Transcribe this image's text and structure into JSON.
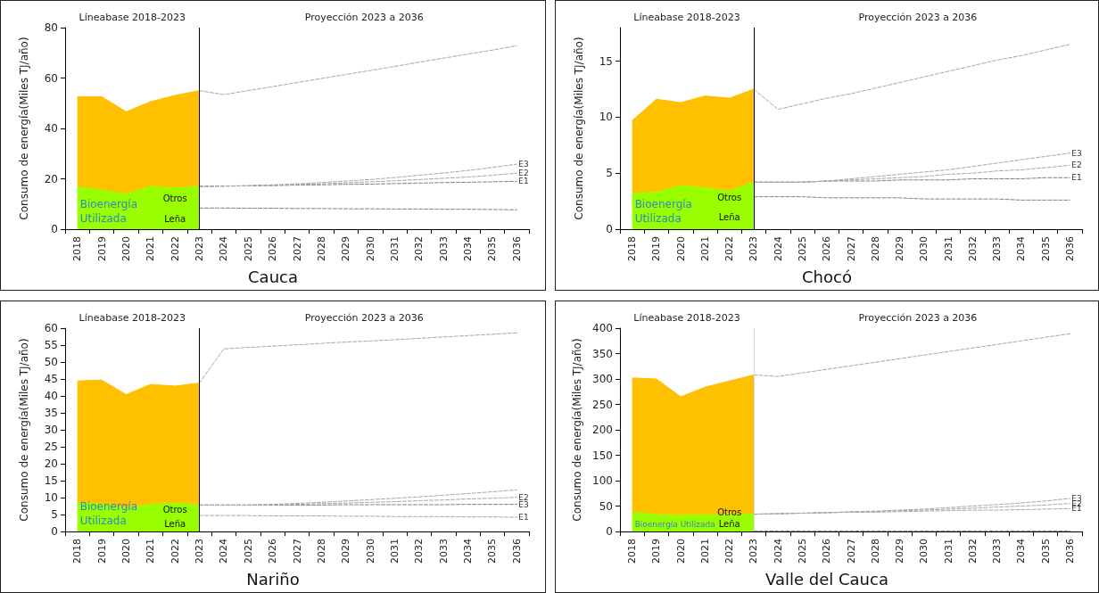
{
  "chart_data": [
    {
      "type": "area",
      "title": "Cauca",
      "ylabel": "Consumo de energía(Miles TJ/año)",
      "stacked": true,
      "marker": "none",
      "ylim": [
        0,
        80
      ],
      "yticks": [
        0,
        20,
        40,
        60,
        80
      ],
      "categories": [
        "2018",
        "2019",
        "2020",
        "2021",
        "2022",
        "2023",
        "2024",
        "2025",
        "2026",
        "2027",
        "2028",
        "2029",
        "2030",
        "2031",
        "2032",
        "2033",
        "2034",
        "2035",
        "2036"
      ],
      "series": [
        {
          "name": "Leña",
          "type": "area",
          "color": "#99ff00",
          "values": [
            7.3,
            7.3,
            6.3,
            8.0,
            8.0,
            8.4,
            null,
            null,
            null,
            null,
            null,
            null,
            null,
            null,
            null,
            null,
            null,
            null,
            null
          ]
        },
        {
          "name": "Otros",
          "type": "area",
          "color": "#99ff00",
          "values": [
            9.5,
            8.3,
            7.7,
            9.0,
            8.4,
            8.6,
            null,
            null,
            null,
            null,
            null,
            null,
            null,
            null,
            null,
            null,
            null,
            null,
            null
          ]
        },
        {
          "type": "area",
          "color": "#ffc000",
          "values": [
            35.8,
            37.0,
            32.6,
            33.6,
            36.7,
            38.0,
            null,
            null,
            null,
            null,
            null,
            null,
            null,
            null,
            null,
            null,
            null,
            null,
            null
          ]
        },
        {
          "type": "line",
          "line_style": "dashed",
          "color": "#a6a6a6",
          "values": [
            null,
            null,
            null,
            null,
            null,
            55.0,
            53.4,
            55.0,
            56.6,
            58.2,
            59.8,
            61.4,
            63.0,
            64.6,
            66.3,
            67.9,
            69.5,
            71.1,
            72.8
          ]
        },
        {
          "type": "line",
          "line_style": "dashed",
          "color": "#7f7f7f",
          "values": [
            null,
            null,
            null,
            null,
            null,
            8.4,
            8.4,
            8.3,
            8.3,
            8.2,
            8.2,
            8.1,
            8.1,
            8.0,
            8.0,
            7.9,
            7.9,
            7.8,
            7.7
          ]
        },
        {
          "name": "E1",
          "type": "line",
          "line_style": "dashed",
          "color": "#7f7f7f",
          "values": [
            null,
            null,
            null,
            null,
            null,
            17.0,
            17.1,
            17.2,
            17.3,
            17.5,
            17.6,
            17.8,
            17.9,
            18.1,
            18.3,
            18.5,
            18.6,
            18.8,
            19.0
          ]
        },
        {
          "name": "E2",
          "type": "line",
          "line_style": "dashed",
          "color": "#a6a6a6",
          "values": [
            null,
            null,
            null,
            null,
            null,
            17.0,
            17.1,
            17.2,
            17.4,
            17.7,
            18.0,
            18.4,
            18.8,
            19.2,
            19.7,
            20.2,
            20.7,
            21.4,
            22.2
          ]
        },
        {
          "name": "E3",
          "type": "line",
          "line_style": "dashed",
          "color": "#a6a6a6",
          "values": [
            null,
            null,
            null,
            null,
            null,
            17.0,
            17.1,
            17.3,
            17.6,
            18.0,
            18.5,
            19.1,
            19.7,
            20.5,
            21.4,
            22.3,
            23.3,
            24.5,
            25.8
          ]
        }
      ],
      "ref_lines": [
        {
          "axis": "x",
          "value": "2023",
          "color": "#000000"
        }
      ],
      "annotations": [
        "Líneabase 2018-2023",
        "Proyección 2023 a 2036",
        "Bioenergía\nUtilizada"
      ]
    },
    {
      "type": "area",
      "title": "Chocó",
      "ylabel": "Consumo de energía(Miles TJ/año)",
      "stacked": true,
      "marker": "none",
      "ylim": [
        0,
        18
      ],
      "yticks": [
        0,
        5,
        10,
        15
      ],
      "categories": [
        "2018",
        "2019",
        "2020",
        "2021",
        "2022",
        "2023",
        "2024",
        "2025",
        "2026",
        "2027",
        "2028",
        "2029",
        "2030",
        "2031",
        "2032",
        "2033",
        "2034",
        "2035",
        "2036"
      ],
      "series": [
        {
          "name": "Leña",
          "type": "area",
          "color": "#99ff00",
          "values": [
            2.6,
            2.6,
            2.8,
            2.5,
            2.2,
            2.9,
            null,
            null,
            null,
            null,
            null,
            null,
            null,
            null,
            null,
            null,
            null,
            null,
            null
          ]
        },
        {
          "name": "Otros",
          "type": "area",
          "color": "#99ff00",
          "values": [
            0.6,
            0.7,
            1.1,
            1.2,
            1.2,
            1.3,
            null,
            null,
            null,
            null,
            null,
            null,
            null,
            null,
            null,
            null,
            null,
            null,
            null
          ]
        },
        {
          "type": "area",
          "color": "#ffc000",
          "values": [
            6.5,
            8.3,
            7.4,
            8.2,
            8.3,
            8.3,
            null,
            null,
            null,
            null,
            null,
            null,
            null,
            null,
            null,
            null,
            null,
            null,
            null
          ]
        },
        {
          "type": "line",
          "line_style": "dashed",
          "color": "#a6a6a6",
          "values": [
            null,
            null,
            null,
            null,
            null,
            12.5,
            10.7,
            11.2,
            11.7,
            12.1,
            12.6,
            13.1,
            13.6,
            14.1,
            14.6,
            15.1,
            15.5,
            16.0,
            16.5
          ]
        },
        {
          "type": "line",
          "line_style": "dashed",
          "color": "#7f7f7f",
          "values": [
            null,
            null,
            null,
            null,
            null,
            2.9,
            2.9,
            2.9,
            2.8,
            2.8,
            2.8,
            2.8,
            2.7,
            2.7,
            2.7,
            2.7,
            2.6,
            2.6,
            2.6
          ]
        },
        {
          "name": "E1",
          "type": "line",
          "line_style": "dashed",
          "color": "#7f7f7f",
          "values": [
            null,
            null,
            null,
            null,
            null,
            4.2,
            4.2,
            4.2,
            4.3,
            4.3,
            4.3,
            4.4,
            4.4,
            4.4,
            4.5,
            4.5,
            4.5,
            4.6,
            4.6
          ]
        },
        {
          "name": "E2",
          "type": "line",
          "line_style": "dashed",
          "color": "#a6a6a6",
          "values": [
            null,
            null,
            null,
            null,
            null,
            4.2,
            4.2,
            4.2,
            4.3,
            4.4,
            4.5,
            4.6,
            4.7,
            4.9,
            5.0,
            5.2,
            5.3,
            5.5,
            5.7
          ]
        },
        {
          "name": "E3",
          "type": "line",
          "line_style": "dashed",
          "color": "#a6a6a6",
          "values": [
            null,
            null,
            null,
            null,
            null,
            4.2,
            4.2,
            4.2,
            4.3,
            4.5,
            4.7,
            4.9,
            5.1,
            5.3,
            5.6,
            5.9,
            6.2,
            6.5,
            6.8
          ]
        }
      ],
      "ref_lines": [
        {
          "axis": "x",
          "value": "2023",
          "color": "#000000"
        }
      ],
      "annotations": [
        "Líneabase 2018-2023",
        "Proyección 2023 a 2036",
        "Bioenergía\nUtilizada"
      ]
    },
    {
      "type": "area",
      "title": "Nariño",
      "ylabel": "Consumo de energía(Miles TJ/año)",
      "stacked": true,
      "marker": "none",
      "ylim": [
        0,
        60
      ],
      "yticks": [
        0,
        5,
        10,
        15,
        20,
        25,
        30,
        35,
        40,
        45,
        50,
        55,
        60
      ],
      "categories": [
        "2018",
        "2019",
        "2020",
        "2021",
        "2022",
        "2023",
        "2024",
        "2025",
        "2026",
        "2027",
        "2028",
        "2029",
        "2030",
        "2031",
        "2032",
        "2033",
        "2034",
        "2035",
        "2036"
      ],
      "series": [
        {
          "name": "Leña",
          "type": "area",
          "color": "#99ff00",
          "values": [
            4.4,
            4.4,
            3.3,
            4.1,
            4.7,
            4.7,
            null,
            null,
            null,
            null,
            null,
            null,
            null,
            null,
            null,
            null,
            null,
            null,
            null
          ]
        },
        {
          "name": "Otros",
          "type": "area",
          "color": "#99ff00",
          "values": [
            4.0,
            3.7,
            3.6,
            3.9,
            3.7,
            3.1,
            null,
            null,
            null,
            null,
            null,
            null,
            null,
            null,
            null,
            null,
            null,
            null,
            null
          ]
        },
        {
          "type": "area",
          "color": "#ffc000",
          "values": [
            36.0,
            36.6,
            33.5,
            35.4,
            34.5,
            36.0,
            null,
            null,
            null,
            null,
            null,
            null,
            null,
            null,
            null,
            null,
            null,
            null,
            null
          ]
        },
        {
          "type": "line",
          "line_style": "dashed",
          "color": "#a6a6a6",
          "values": [
            null,
            null,
            null,
            null,
            null,
            43.8,
            53.9,
            54.3,
            54.7,
            55.1,
            55.5,
            55.9,
            56.2,
            56.6,
            57.0,
            57.4,
            57.8,
            58.2,
            58.6
          ]
        },
        {
          "name": "E1",
          "type": "line",
          "line_style": "dashed",
          "color": "#a6a6a6",
          "values": [
            null,
            null,
            null,
            null,
            null,
            4.7,
            4.7,
            4.7,
            4.6,
            4.6,
            4.6,
            4.5,
            4.5,
            4.4,
            4.4,
            4.4,
            4.3,
            4.3,
            4.2
          ]
        },
        {
          "name": "E3",
          "type": "line",
          "line_style": "dashed",
          "color": "#7f7f7f",
          "values": [
            null,
            null,
            null,
            null,
            null,
            7.8,
            7.8,
            7.8,
            7.8,
            7.8,
            7.8,
            7.9,
            7.9,
            7.9,
            7.9,
            7.9,
            8.0,
            8.0,
            8.0
          ]
        },
        {
          "name": "E2",
          "type": "line",
          "line_style": "dashed",
          "color": "#a6a6a6",
          "values": [
            null,
            null,
            null,
            null,
            null,
            7.8,
            7.8,
            7.8,
            7.9,
            8.0,
            8.2,
            8.4,
            8.6,
            8.8,
            9.1,
            9.3,
            9.6,
            9.8,
            10.1
          ]
        },
        {
          "type": "line",
          "line_style": "dashed",
          "color": "#a6a6a6",
          "values": [
            null,
            null,
            null,
            null,
            null,
            7.8,
            7.8,
            7.8,
            8.0,
            8.3,
            8.6,
            9.0,
            9.4,
            9.8,
            10.2,
            10.7,
            11.2,
            11.7,
            12.3
          ]
        }
      ],
      "ref_lines": [
        {
          "axis": "x",
          "value": "2023",
          "color": "#000000"
        }
      ],
      "annotations": [
        "Líneabase 2018-2023",
        "Proyección 2023 a 2036",
        "Bioenergía\nUtilizada"
      ]
    },
    {
      "type": "area",
      "title": "Valle del Cauca",
      "ylabel": "Consumo de energía(Miles TJ/año)",
      "stacked": true,
      "marker": "none",
      "ylim": [
        0,
        400
      ],
      "yticks": [
        0,
        50,
        100,
        150,
        200,
        250,
        300,
        350,
        400
      ],
      "categories": [
        "2018",
        "2019",
        "2020",
        "2021",
        "2022",
        "2023",
        "2024",
        "2025",
        "2026",
        "2027",
        "2028",
        "2029",
        "2030",
        "2031",
        "2032",
        "2033",
        "2034",
        "2035",
        "2036"
      ],
      "series": [
        {
          "name": "Leña",
          "type": "area",
          "color": "#99ff00",
          "values": [
            1,
            1,
            1,
            1,
            1,
            1,
            null,
            null,
            null,
            null,
            null,
            null,
            null,
            null,
            null,
            null,
            null,
            null,
            null
          ]
        },
        {
          "name": "Otros",
          "type": "area",
          "color": "#99ff00",
          "values": [
            37,
            32,
            31,
            32,
            32,
            33,
            null,
            null,
            null,
            null,
            null,
            null,
            null,
            null,
            null,
            null,
            null,
            null,
            null
          ]
        },
        {
          "type": "area",
          "color": "#ffc000",
          "values": [
            264,
            267,
            233,
            251,
            263,
            274,
            null,
            null,
            null,
            null,
            null,
            null,
            null,
            null,
            null,
            null,
            null,
            null,
            null
          ]
        },
        {
          "type": "line",
          "line_style": "dashed",
          "color": "#a6a6a6",
          "values": [
            null,
            null,
            null,
            null,
            null,
            308,
            305,
            312,
            319,
            326,
            333,
            340,
            347,
            354,
            361,
            368,
            375,
            382,
            389
          ]
        },
        {
          "type": "line",
          "line_style": "dashed",
          "color": "#7f7f7f",
          "values": [
            null,
            null,
            null,
            null,
            null,
            1,
            1,
            1,
            1,
            1,
            1,
            1,
            1,
            1,
            1,
            1,
            1,
            1,
            1
          ]
        },
        {
          "name": "E1",
          "type": "line",
          "line_style": "dashed",
          "color": "#a6a6a6",
          "values": [
            null,
            null,
            null,
            null,
            null,
            34,
            35,
            36,
            37,
            38,
            38,
            39,
            40,
            41,
            42,
            42,
            43,
            44,
            45
          ]
        },
        {
          "name": "E2",
          "type": "line",
          "line_style": "dashed",
          "color": "#a6a6a6",
          "values": [
            null,
            null,
            null,
            null,
            null,
            34,
            35,
            36,
            37,
            38,
            39,
            41,
            42,
            44,
            46,
            48,
            50,
            52,
            55
          ]
        },
        {
          "name": "E3",
          "type": "line",
          "line_style": "dashed",
          "color": "#a6a6a6",
          "values": [
            null,
            null,
            null,
            null,
            null,
            34,
            35,
            36,
            37,
            39,
            40,
            42,
            44,
            47,
            50,
            53,
            56,
            60,
            65
          ]
        }
      ],
      "ref_lines": [
        {
          "axis": "x",
          "value": "2023",
          "color": "#d9d9d9"
        }
      ],
      "annotations": [
        "Líneabase 2018-2023",
        "Proyección 2023 a 2036",
        "Bioenergía Utilizada"
      ]
    }
  ]
}
